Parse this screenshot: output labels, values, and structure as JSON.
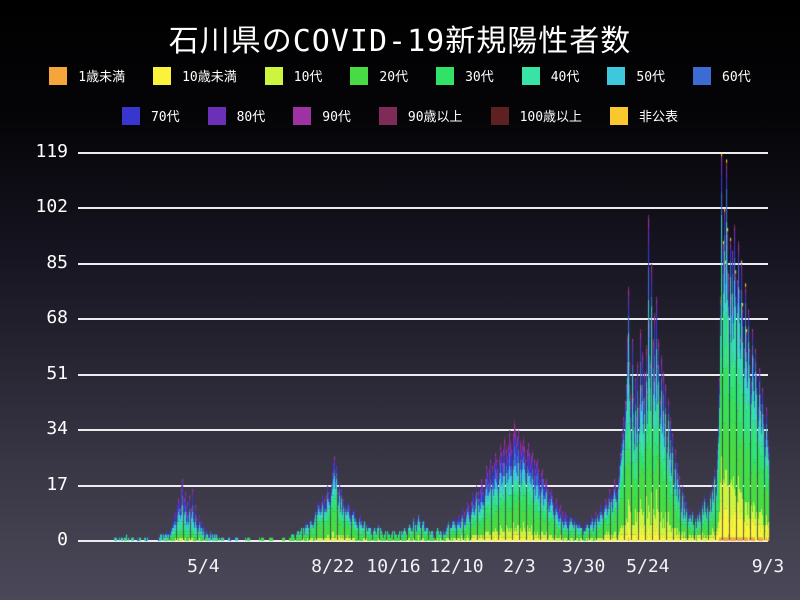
{
  "colors": {
    "background_top": "#000000",
    "background_bottom": "#4B4859",
    "grid": "#ECECF0",
    "text": "#FFFFFF"
  },
  "chart_data": {
    "type": "stacked-bar",
    "title": "石川県のCOVID-19新規陽性者数",
    "xlabel": "",
    "ylabel": "",
    "ylim": [
      0,
      119
    ],
    "grid": true,
    "legend_position": "top",
    "legend_row_break": 8,
    "y_ticks": [
      119,
      102,
      85,
      68,
      51,
      34,
      17,
      0
    ],
    "x_ticks": [
      {
        "label": "5/4",
        "day": 104
      },
      {
        "label": "8/22",
        "day": 215
      },
      {
        "label": "10/16",
        "day": 267
      },
      {
        "label": "12/10",
        "day": 321
      },
      {
        "label": "2/3",
        "day": 375
      },
      {
        "label": "3/30",
        "day": 430
      },
      {
        "label": "5/24",
        "day": 485
      },
      {
        "label": "9/3",
        "day": 588
      }
    ],
    "total_days": 589,
    "series": [
      {
        "key": "u1",
        "label": "1歳未満",
        "color": "#F5A53A"
      },
      {
        "key": "u10",
        "label": "10歳未満",
        "color": "#FAF33A"
      },
      {
        "key": "t10",
        "label": "10代",
        "color": "#CDF53F"
      },
      {
        "key": "t20",
        "label": "20代",
        "color": "#47DC43"
      },
      {
        "key": "t30",
        "label": "30代",
        "color": "#30E266"
      },
      {
        "key": "t40",
        "label": "40代",
        "color": "#37E3A5"
      },
      {
        "key": "t50",
        "label": "50代",
        "color": "#3DC8DE"
      },
      {
        "key": "t60",
        "label": "60代",
        "color": "#3C6CD3"
      },
      {
        "key": "t70",
        "label": "70代",
        "color": "#3836CE"
      },
      {
        "key": "t80",
        "label": "80代",
        "color": "#6B2FB8"
      },
      {
        "key": "t90",
        "label": "90代",
        "color": "#9E32A2"
      },
      {
        "key": "o90",
        "label": "90歳以上",
        "color": "#7E2B58"
      },
      {
        "key": "o100",
        "label": "100歳以上",
        "color": "#5E2021"
      },
      {
        "key": "np",
        "label": "非公表",
        "color": "#FBC72F"
      }
    ],
    "age_profiles": [
      {
        "from": 0,
        "to": 140,
        "fractions": {
          "u1": 0.0,
          "u10": 0.02,
          "t10": 0.04,
          "t20": 0.12,
          "t30": 0.12,
          "t40": 0.14,
          "t50": 0.16,
          "t60": 0.12,
          "t70": 0.12,
          "t80": 0.08,
          "t90": 0.05,
          "o90": 0.02,
          "o100": 0.005,
          "np": 0.005
        }
      },
      {
        "from": 141,
        "to": 300,
        "fractions": {
          "u1": 0.005,
          "u10": 0.03,
          "t10": 0.07,
          "t20": 0.28,
          "t30": 0.16,
          "t40": 0.13,
          "t50": 0.11,
          "t60": 0.08,
          "t70": 0.06,
          "t80": 0.04,
          "t90": 0.02,
          "o90": 0.01,
          "o100": 0.0,
          "np": 0.005
        }
      },
      {
        "from": 301,
        "to": 440,
        "fractions": {
          "u1": 0.005,
          "u10": 0.04,
          "t10": 0.08,
          "t20": 0.22,
          "t30": 0.13,
          "t40": 0.12,
          "t50": 0.11,
          "t60": 0.1,
          "t70": 0.08,
          "t80": 0.06,
          "t90": 0.04,
          "o90": 0.015,
          "o100": 0.005,
          "np": 0.005
        }
      },
      {
        "from": 441,
        "to": 520,
        "fractions": {
          "u1": 0.005,
          "u10": 0.05,
          "t10": 0.1,
          "t20": 0.24,
          "t30": 0.15,
          "t40": 0.13,
          "t50": 0.11,
          "t60": 0.08,
          "t70": 0.06,
          "t80": 0.04,
          "t90": 0.025,
          "o90": 0.01,
          "o100": 0.003,
          "np": 0.002
        }
      },
      {
        "from": 521,
        "to": 588,
        "fractions": {
          "u1": 0.01,
          "u10": 0.07,
          "t10": 0.09,
          "t20": 0.24,
          "t30": 0.18,
          "t40": 0.15,
          "t50": 0.1,
          "t60": 0.06,
          "t70": 0.04,
          "t80": 0.025,
          "t90": 0.012,
          "o90": 0.005,
          "o100": 0.002,
          "np": 0.006
        }
      }
    ],
    "daily_totals_breakpoints": [
      [
        0,
        0
      ],
      [
        26,
        0
      ],
      [
        28,
        1
      ],
      [
        30,
        0
      ],
      [
        33,
        1
      ],
      [
        35,
        0
      ],
      [
        38,
        2
      ],
      [
        40,
        0
      ],
      [
        43,
        1
      ],
      [
        45,
        0
      ],
      [
        49,
        1
      ],
      [
        51,
        0
      ],
      [
        55,
        1
      ],
      [
        57,
        0
      ],
      [
        60,
        0
      ],
      [
        64,
        0
      ],
      [
        66,
        1
      ],
      [
        68,
        2
      ],
      [
        70,
        1
      ],
      [
        72,
        3
      ],
      [
        74,
        2
      ],
      [
        76,
        4
      ],
      [
        78,
        6
      ],
      [
        80,
        9
      ],
      [
        82,
        13
      ],
      [
        84,
        10
      ],
      [
        85,
        17
      ],
      [
        86,
        19
      ],
      [
        87,
        13
      ],
      [
        88,
        15
      ],
      [
        89,
        9
      ],
      [
        90,
        12
      ],
      [
        91,
        8
      ],
      [
        92,
        14
      ],
      [
        93,
        10
      ],
      [
        94,
        16
      ],
      [
        95,
        9
      ],
      [
        96,
        6
      ],
      [
        97,
        11
      ],
      [
        98,
        7
      ],
      [
        99,
        5
      ],
      [
        100,
        8
      ],
      [
        101,
        4
      ],
      [
        102,
        6
      ],
      [
        103,
        3
      ],
      [
        104,
        5
      ],
      [
        105,
        2
      ],
      [
        106,
        4
      ],
      [
        107,
        2
      ],
      [
        108,
        1
      ],
      [
        110,
        3
      ],
      [
        112,
        1
      ],
      [
        114,
        2
      ],
      [
        116,
        1
      ],
      [
        118,
        0
      ],
      [
        120,
        1
      ],
      [
        122,
        0
      ],
      [
        126,
        1
      ],
      [
        128,
        0
      ],
      [
        132,
        1
      ],
      [
        134,
        0
      ],
      [
        138,
        0
      ],
      [
        142,
        1
      ],
      [
        144,
        0
      ],
      [
        150,
        0
      ],
      [
        154,
        1
      ],
      [
        156,
        0
      ],
      [
        162,
        1
      ],
      [
        164,
        0
      ],
      [
        168,
        0
      ],
      [
        172,
        1
      ],
      [
        174,
        0
      ],
      [
        178,
        1
      ],
      [
        180,
        2
      ],
      [
        182,
        1
      ],
      [
        184,
        3
      ],
      [
        186,
        2
      ],
      [
        188,
        4
      ],
      [
        190,
        3
      ],
      [
        192,
        6
      ],
      [
        194,
        4
      ],
      [
        196,
        7
      ],
      [
        198,
        5
      ],
      [
        200,
        9
      ],
      [
        202,
        12
      ],
      [
        204,
        9
      ],
      [
        206,
        14
      ],
      [
        208,
        11
      ],
      [
        210,
        17
      ],
      [
        212,
        13
      ],
      [
        214,
        21
      ],
      [
        216,
        26
      ],
      [
        217,
        19
      ],
      [
        218,
        23
      ],
      [
        219,
        15
      ],
      [
        220,
        18
      ],
      [
        221,
        12
      ],
      [
        222,
        16
      ],
      [
        223,
        10
      ],
      [
        224,
        13
      ],
      [
        226,
        9
      ],
      [
        228,
        12
      ],
      [
        230,
        8
      ],
      [
        232,
        10
      ],
      [
        234,
        7
      ],
      [
        236,
        5
      ],
      [
        238,
        8
      ],
      [
        240,
        4
      ],
      [
        242,
        6
      ],
      [
        244,
        3
      ],
      [
        246,
        5
      ],
      [
        248,
        2
      ],
      [
        250,
        4
      ],
      [
        252,
        2
      ],
      [
        254,
        5
      ],
      [
        256,
        3
      ],
      [
        258,
        1
      ],
      [
        260,
        3
      ],
      [
        262,
        2
      ],
      [
        264,
        1
      ],
      [
        266,
        3
      ],
      [
        268,
        2
      ],
      [
        270,
        1
      ],
      [
        272,
        3
      ],
      [
        274,
        2
      ],
      [
        276,
        4
      ],
      [
        278,
        2
      ],
      [
        280,
        5
      ],
      [
        282,
        3
      ],
      [
        284,
        7
      ],
      [
        286,
        4
      ],
      [
        288,
        8
      ],
      [
        290,
        5
      ],
      [
        292,
        6
      ],
      [
        294,
        3
      ],
      [
        296,
        4
      ],
      [
        298,
        2
      ],
      [
        300,
        3
      ],
      [
        302,
        1
      ],
      [
        304,
        4
      ],
      [
        306,
        2
      ],
      [
        308,
        3
      ],
      [
        310,
        2
      ],
      [
        312,
        4
      ],
      [
        314,
        6
      ],
      [
        316,
        4
      ],
      [
        318,
        7
      ],
      [
        320,
        5
      ],
      [
        322,
        8
      ],
      [
        324,
        6
      ],
      [
        326,
        10
      ],
      [
        328,
        7
      ],
      [
        330,
        12
      ],
      [
        332,
        9
      ],
      [
        334,
        15
      ],
      [
        336,
        11
      ],
      [
        338,
        17
      ],
      [
        340,
        13
      ],
      [
        342,
        19
      ],
      [
        344,
        15
      ],
      [
        346,
        23
      ],
      [
        348,
        18
      ],
      [
        350,
        25
      ],
      [
        352,
        20
      ],
      [
        354,
        27
      ],
      [
        356,
        22
      ],
      [
        358,
        30
      ],
      [
        360,
        24
      ],
      [
        362,
        32
      ],
      [
        364,
        26
      ],
      [
        366,
        34
      ],
      [
        368,
        28
      ],
      [
        370,
        37
      ],
      [
        372,
        30
      ],
      [
        374,
        34
      ],
      [
        376,
        28
      ],
      [
        378,
        32
      ],
      [
        380,
        26
      ],
      [
        382,
        30
      ],
      [
        384,
        24
      ],
      [
        386,
        28
      ],
      [
        388,
        22
      ],
      [
        390,
        25
      ],
      [
        392,
        19
      ],
      [
        394,
        22
      ],
      [
        396,
        16
      ],
      [
        398,
        19
      ],
      [
        400,
        13
      ],
      [
        402,
        16
      ],
      [
        404,
        11
      ],
      [
        406,
        13
      ],
      [
        408,
        9
      ],
      [
        410,
        11
      ],
      [
        412,
        7
      ],
      [
        414,
        9
      ],
      [
        416,
        6
      ],
      [
        418,
        8
      ],
      [
        420,
        5
      ],
      [
        422,
        7
      ],
      [
        424,
        4
      ],
      [
        426,
        6
      ],
      [
        428,
        4
      ],
      [
        430,
        3
      ],
      [
        432,
        6
      ],
      [
        434,
        4
      ],
      [
        436,
        8
      ],
      [
        438,
        5
      ],
      [
        440,
        9
      ],
      [
        442,
        6
      ],
      [
        444,
        11
      ],
      [
        446,
        8
      ],
      [
        448,
        13
      ],
      [
        450,
        10
      ],
      [
        452,
        16
      ],
      [
        454,
        12
      ],
      [
        456,
        19
      ],
      [
        458,
        15
      ],
      [
        460,
        23
      ],
      [
        462,
        30
      ],
      [
        464,
        38
      ],
      [
        466,
        48
      ],
      [
        468,
        78
      ],
      [
        469,
        55
      ],
      [
        470,
        45
      ],
      [
        471,
        62
      ],
      [
        472,
        45
      ],
      [
        473,
        35
      ],
      [
        474,
        50
      ],
      [
        475,
        38
      ],
      [
        476,
        55
      ],
      [
        477,
        42
      ],
      [
        478,
        65
      ],
      [
        479,
        48
      ],
      [
        480,
        58
      ],
      [
        481,
        44
      ],
      [
        482,
        52
      ],
      [
        483,
        60
      ],
      [
        484,
        47
      ],
      [
        485,
        100
      ],
      [
        486,
        68
      ],
      [
        487,
        55
      ],
      [
        488,
        85
      ],
      [
        489,
        62
      ],
      [
        490,
        70
      ],
      [
        491,
        50
      ],
      [
        492,
        75
      ],
      [
        493,
        55
      ],
      [
        494,
        62
      ],
      [
        495,
        44
      ],
      [
        496,
        57
      ],
      [
        497,
        40
      ],
      [
        498,
        52
      ],
      [
        499,
        36
      ],
      [
        500,
        48
      ],
      [
        501,
        32
      ],
      [
        502,
        44
      ],
      [
        503,
        28
      ],
      [
        504,
        38
      ],
      [
        505,
        25
      ],
      [
        506,
        33
      ],
      [
        507,
        22
      ],
      [
        508,
        28
      ],
      [
        509,
        18
      ],
      [
        510,
        24
      ],
      [
        511,
        15
      ],
      [
        512,
        20
      ],
      [
        513,
        12
      ],
      [
        514,
        17
      ],
      [
        515,
        10
      ],
      [
        516,
        14
      ],
      [
        517,
        8
      ],
      [
        518,
        12
      ],
      [
        519,
        7
      ],
      [
        520,
        10
      ],
      [
        521,
        8
      ],
      [
        522,
        6
      ],
      [
        523,
        9
      ],
      [
        524,
        5
      ],
      [
        525,
        7
      ],
      [
        526,
        4
      ],
      [
        527,
        8
      ],
      [
        528,
        6
      ],
      [
        529,
        10
      ],
      [
        530,
        7
      ],
      [
        531,
        12
      ],
      [
        532,
        9
      ],
      [
        533,
        14
      ],
      [
        534,
        10
      ],
      [
        535,
        8
      ],
      [
        536,
        12
      ],
      [
        537,
        9
      ],
      [
        538,
        15
      ],
      [
        539,
        11
      ],
      [
        540,
        18
      ],
      [
        541,
        14
      ],
      [
        542,
        22
      ],
      [
        543,
        17
      ],
      [
        544,
        28
      ],
      [
        545,
        35
      ],
      [
        546,
        50
      ],
      [
        547,
        75
      ],
      [
        548,
        119
      ],
      [
        549,
        92
      ],
      [
        550,
        102
      ],
      [
        551,
        86
      ],
      [
        552,
        117
      ],
      [
        553,
        96
      ],
      [
        554,
        82
      ],
      [
        555,
        93
      ],
      [
        556,
        76
      ],
      [
        557,
        89
      ],
      [
        558,
        72
      ],
      [
        559,
        97
      ],
      [
        560,
        83
      ],
      [
        561,
        80
      ],
      [
        562,
        92
      ],
      [
        563,
        77
      ],
      [
        564,
        63
      ],
      [
        565,
        86
      ],
      [
        566,
        73
      ],
      [
        567,
        59
      ],
      [
        568,
        79
      ],
      [
        569,
        65
      ],
      [
        570,
        53
      ],
      [
        571,
        71
      ],
      [
        572,
        59
      ],
      [
        573,
        49
      ],
      [
        574,
        65
      ],
      [
        575,
        56
      ],
      [
        576,
        46
      ],
      [
        577,
        59
      ],
      [
        578,
        51
      ],
      [
        579,
        41
      ],
      [
        580,
        53
      ],
      [
        581,
        45
      ],
      [
        582,
        37
      ],
      [
        583,
        47
      ],
      [
        584,
        39
      ],
      [
        585,
        31
      ],
      [
        586,
        41
      ],
      [
        587,
        33
      ],
      [
        588,
        29
      ]
    ]
  }
}
